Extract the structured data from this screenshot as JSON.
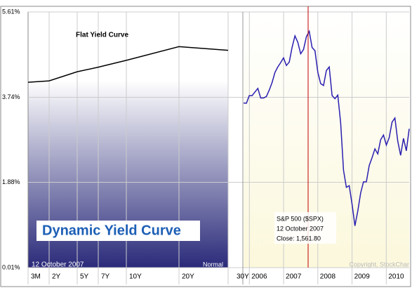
{
  "chart_data": [
    {
      "type": "line",
      "title": "Flat Yield Curve",
      "banner": "Dynamic Yield Curve",
      "date_label": "12 October 2007",
      "state_label": "Normal",
      "categories": [
        "3M",
        "2Y",
        "5Y",
        "7Y",
        "10Y",
        "20Y",
        "30Y"
      ],
      "values": [
        4.07,
        4.1,
        4.3,
        4.4,
        4.55,
        4.85,
        4.77
      ],
      "color": "#000000",
      "ylim": [
        0.01,
        5.61
      ],
      "yticks": [
        {
          "value": 5.61,
          "label": "5.61%"
        },
        {
          "value": 3.74,
          "label": "3.74%"
        },
        {
          "value": 1.88,
          "label": "1.88%"
        },
        {
          "value": 0.01,
          "label": "0.01%"
        }
      ],
      "grid": true
    },
    {
      "type": "line",
      "series": [
        {
          "name": "S&P 500 ($SPX)",
          "color": "#2a1fb0",
          "values": [
            1249,
            1248,
            1280,
            1280,
            1295,
            1310,
            1270,
            1270,
            1276,
            1303,
            1335,
            1377,
            1400,
            1418,
            1438,
            1406,
            1420,
            1482,
            1530,
            1503,
            1455,
            1473,
            1526,
            1549,
            1481,
            1468,
            1378,
            1330,
            1322,
            1385,
            1400,
            1280,
            1267,
            1282,
            1166,
            968,
            896,
            903,
            825,
            735,
            797,
            872,
            919,
            919,
            987,
            1020,
            1057,
            1036,
            1095,
            1115,
            1073,
            1104,
            1169,
            1186,
            1089,
            1030,
            1101,
            1049,
            1141
          ]
        }
      ],
      "annotation": [
        "S&P 500 ($SPX)",
        "12 October 2007",
        "Close: 1,561.80"
      ],
      "marker_color": "#c00000",
      "ylim": [
        560,
        1630
      ],
      "xlim": [
        2005.83,
        2010.67
      ],
      "xticks": [
        2006,
        2007,
        2008,
        2009,
        2010
      ],
      "copyright": "Copyright, StockChar"
    }
  ]
}
